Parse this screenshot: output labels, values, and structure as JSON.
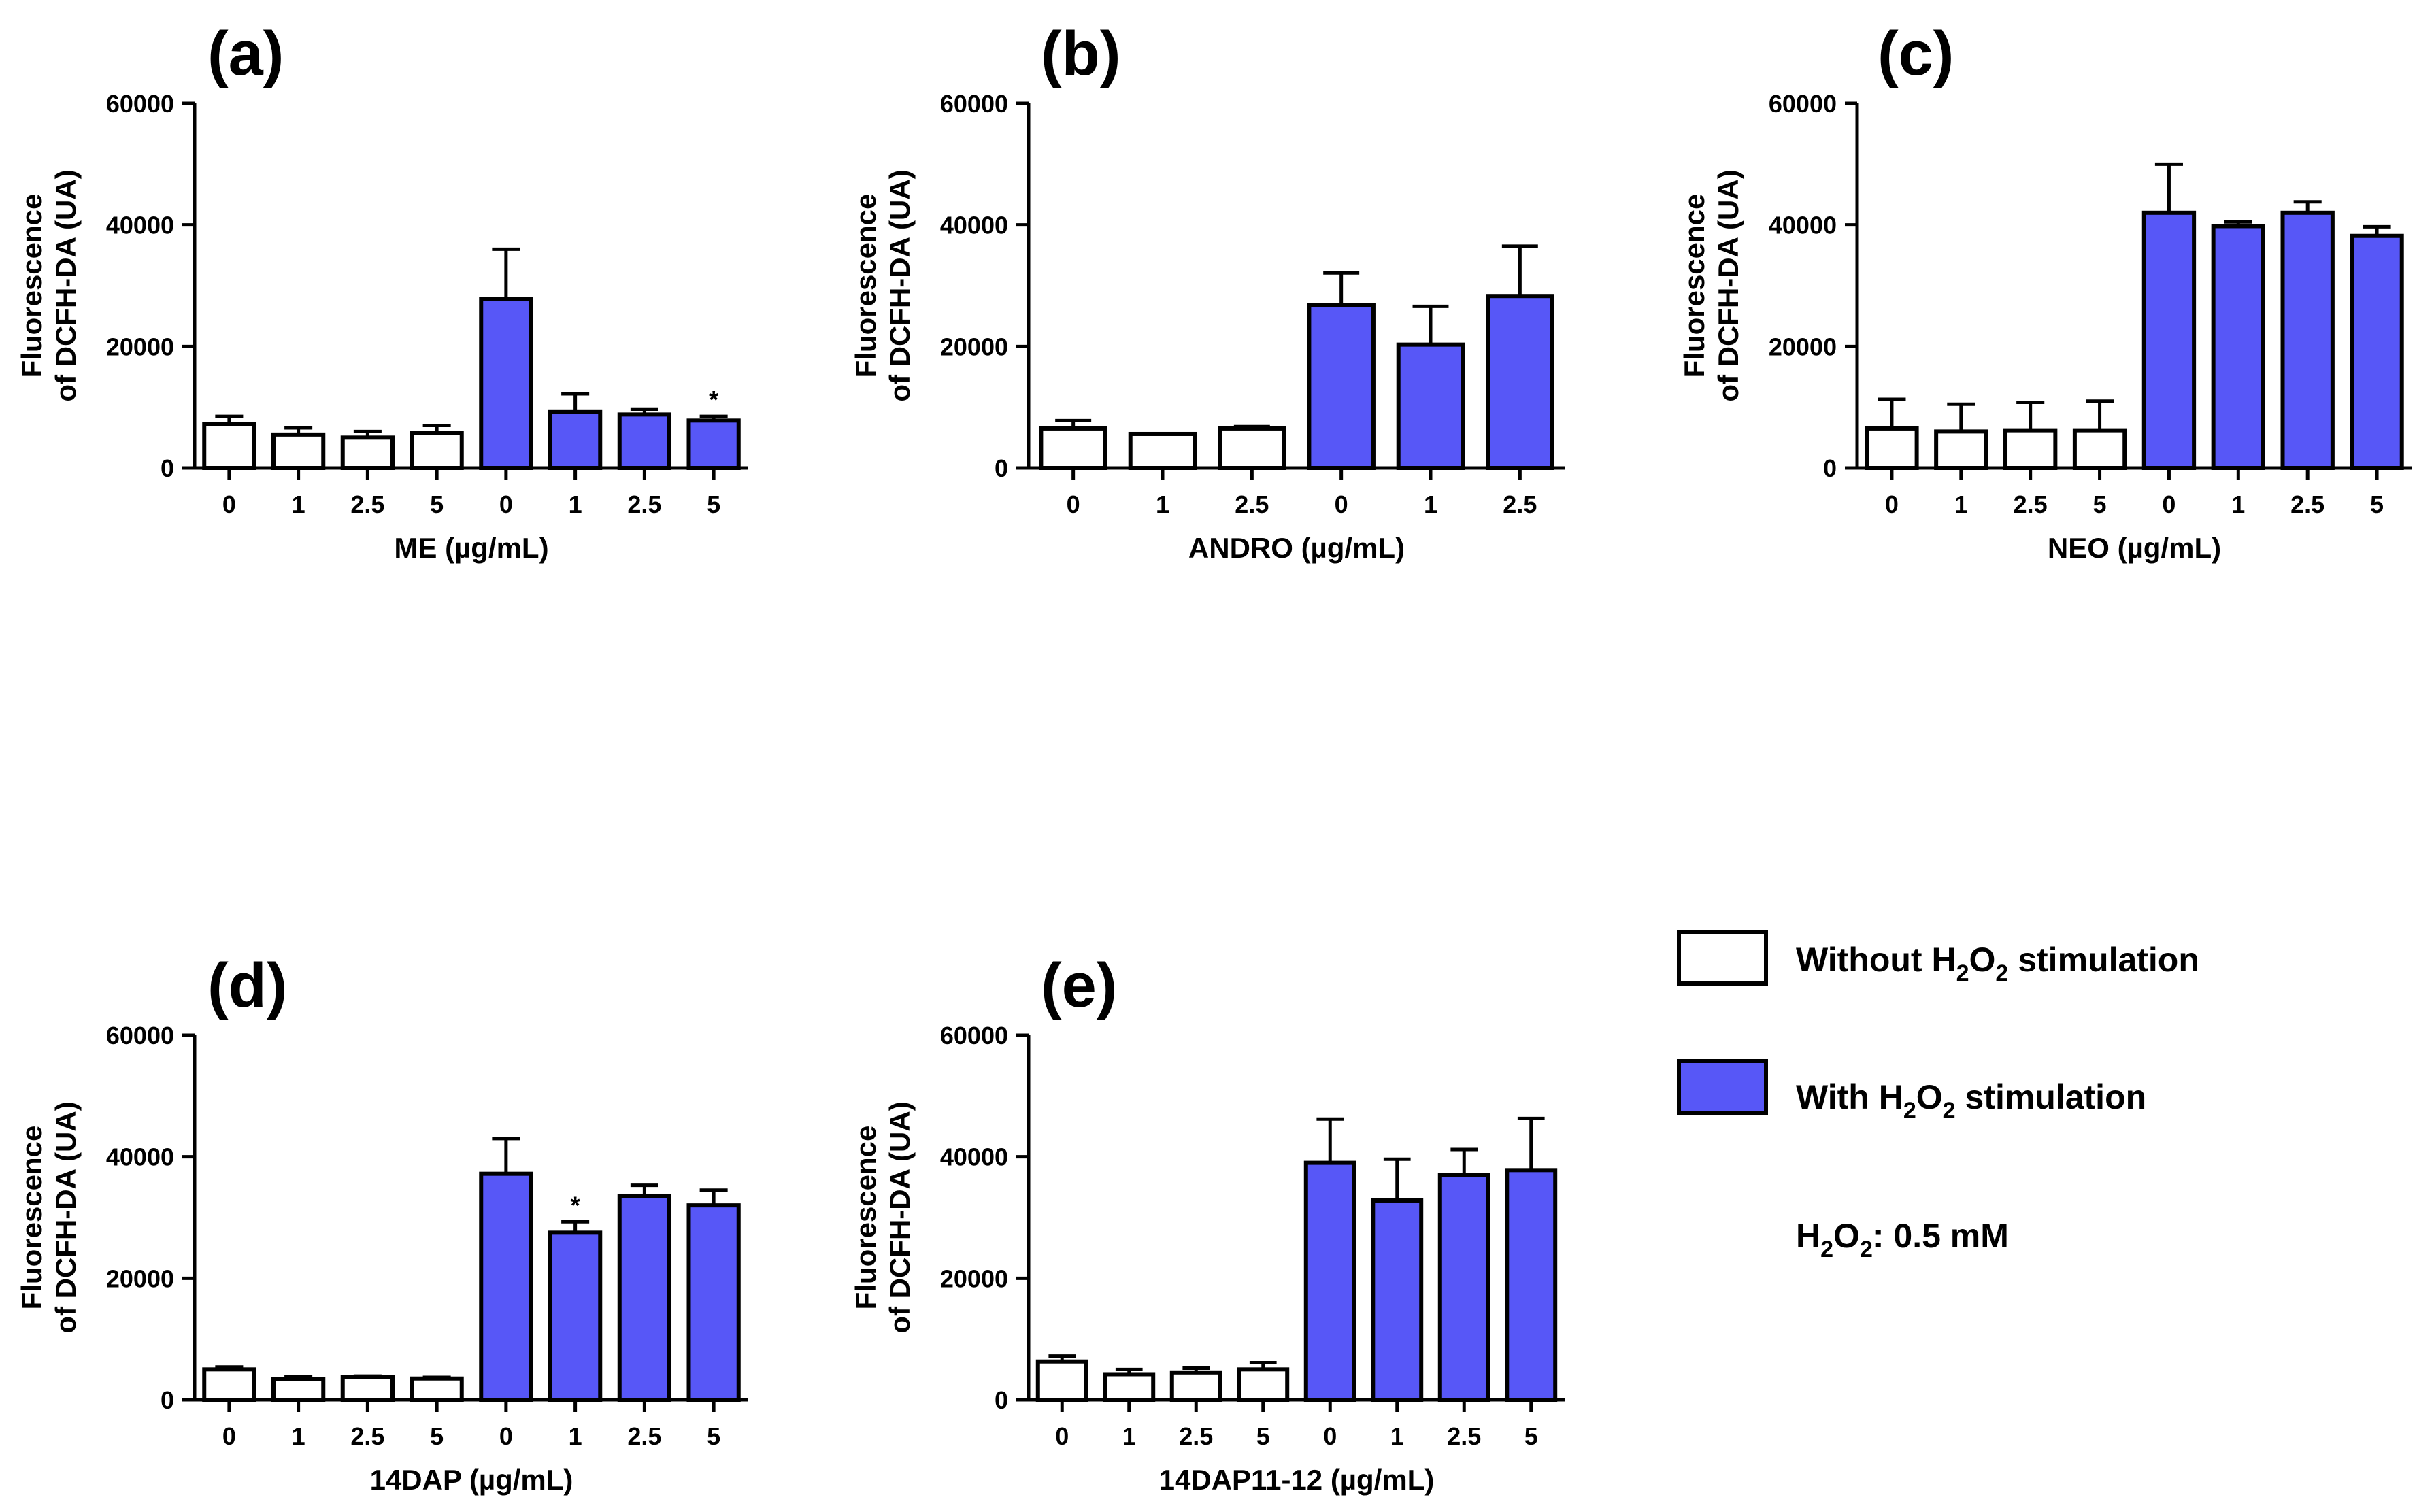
{
  "colors": {
    "without": "#ffffff",
    "with": "#5757f7",
    "stroke": "#000000"
  },
  "chart_data": [
    {
      "type": "bar",
      "panel": "(a)",
      "title": "",
      "xlabel": "ME (µg/mL)",
      "ylabel_line1": "Fluorescence",
      "ylabel_line2": "of DCFH-DA (UA)",
      "ylim": [
        0,
        60000
      ],
      "yticks": [
        "0",
        "20000",
        "40000",
        "60000"
      ],
      "categories": [
        "0",
        "1",
        "2.5",
        "5",
        "0",
        "1",
        "2.5",
        "5"
      ],
      "values": [
        7200,
        5500,
        5000,
        5800,
        27800,
        9200,
        8800,
        7800
      ],
      "errors": [
        1300,
        1100,
        1000,
        1200,
        8200,
        3000,
        800,
        700
      ],
      "groups": [
        "without",
        "without",
        "without",
        "without",
        "with",
        "with",
        "with",
        "with"
      ],
      "annotations": [
        "",
        "",
        "",
        "",
        "",
        "",
        "",
        "*"
      ]
    },
    {
      "type": "bar",
      "panel": "(b)",
      "title": "",
      "xlabel": "ANDRO (µg/mL)",
      "ylabel_line1": "Fluorescence",
      "ylabel_line2": "of DCFH-DA (UA)",
      "ylim": [
        0,
        60000
      ],
      "yticks": [
        "0",
        "20000",
        "40000",
        "60000"
      ],
      "categories": [
        "0",
        "1",
        "2.5",
        "0",
        "1",
        "2.5"
      ],
      "values": [
        6500,
        5600,
        6500,
        26800,
        20300,
        28300
      ],
      "errors": [
        1300,
        0,
        300,
        5300,
        6300,
        8200
      ],
      "groups": [
        "without",
        "without",
        "without",
        "with",
        "with",
        "with"
      ],
      "annotations": [
        "",
        "",
        "",
        "",
        "",
        ""
      ]
    },
    {
      "type": "bar",
      "panel": "(c)",
      "title": "",
      "xlabel": "NEO (µg/mL)",
      "ylabel_line1": "Fluorescence",
      "ylabel_line2": "of DCFH-DA (UA)",
      "ylim": [
        0,
        60000
      ],
      "yticks": [
        "0",
        "20000",
        "40000",
        "60000"
      ],
      "categories": [
        "0",
        "1",
        "2.5",
        "5",
        "0",
        "1",
        "2.5",
        "5"
      ],
      "values": [
        6500,
        6000,
        6200,
        6200,
        42000,
        39800,
        42000,
        38200
      ],
      "errors": [
        4800,
        4500,
        4600,
        4800,
        8000,
        700,
        1800,
        1500
      ],
      "groups": [
        "without",
        "without",
        "without",
        "without",
        "with",
        "with",
        "with",
        "with"
      ],
      "annotations": [
        "",
        "",
        "",
        "",
        "",
        "",
        "",
        ""
      ]
    },
    {
      "type": "bar",
      "panel": "(d)",
      "title": "",
      "xlabel": "14DAP (µg/mL)",
      "ylabel_line1": "Fluorescence",
      "ylabel_line2": "of DCFH-DA (UA)",
      "ylim": [
        0,
        60000
      ],
      "yticks": [
        "0",
        "20000",
        "40000",
        "60000"
      ],
      "categories": [
        "0",
        "1",
        "2.5",
        "5",
        "0",
        "1",
        "2.5",
        "5"
      ],
      "values": [
        5000,
        3400,
        3700,
        3500,
        37200,
        27500,
        33500,
        32000
      ],
      "errors": [
        400,
        400,
        200,
        200,
        5800,
        1800,
        1800,
        2500
      ],
      "groups": [
        "without",
        "without",
        "without",
        "without",
        "with",
        "with",
        "with",
        "with"
      ],
      "annotations": [
        "",
        "",
        "",
        "",
        "",
        "*",
        "",
        ""
      ]
    },
    {
      "type": "bar",
      "panel": "(e)",
      "title": "",
      "xlabel": "14DAP11-12 (µg/mL)",
      "ylabel_line1": "Fluorescence",
      "ylabel_line2": "of DCFH-DA (UA)",
      "ylim": [
        0,
        60000
      ],
      "yticks": [
        "0",
        "20000",
        "40000",
        "60000"
      ],
      "categories": [
        "0",
        "1",
        "2.5",
        "5",
        "0",
        "1",
        "2.5",
        "5"
      ],
      "values": [
        6300,
        4200,
        4500,
        5000,
        39000,
        32800,
        37000,
        37800
      ],
      "errors": [
        900,
        800,
        700,
        1100,
        7200,
        6800,
        4200,
        8500
      ],
      "groups": [
        "without",
        "without",
        "without",
        "without",
        "with",
        "with",
        "with",
        "with"
      ],
      "annotations": [
        "",
        "",
        "",
        "",
        "",
        "",
        "",
        ""
      ]
    }
  ],
  "legend": {
    "without_prefix": "Without H",
    "without_sub1": "2",
    "without_mid": "O",
    "without_sub2": "2",
    "without_suffix": " stimulation",
    "with_prefix": "With H",
    "with_sub1": "2",
    "with_mid": "O",
    "with_sub2": "2",
    "with_suffix": " stimulation",
    "note_prefix": "H",
    "note_sub1": "2",
    "note_mid": "O",
    "note_sub2": "2",
    "note_suffix": ": 0.5 mM"
  }
}
